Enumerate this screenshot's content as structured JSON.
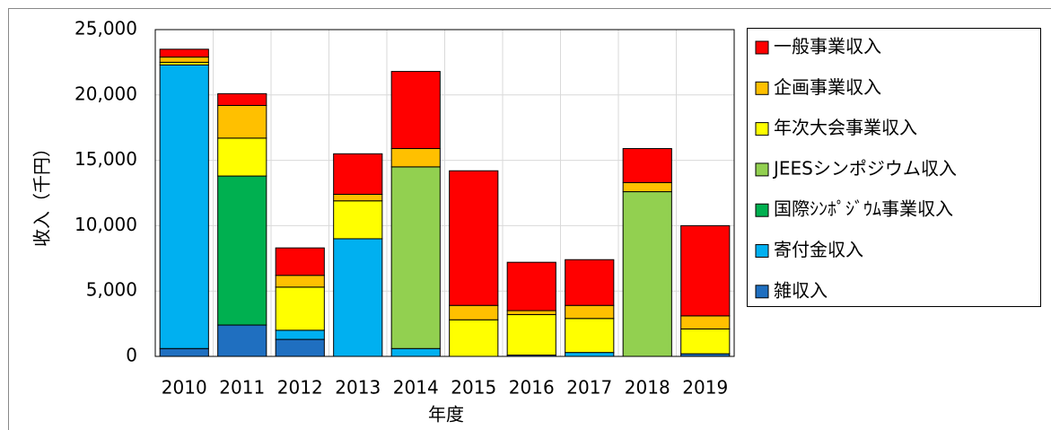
{
  "chart_data": {
    "type": "stacked_bar",
    "x_label": "年度",
    "y_label": "收入（千円）",
    "categories": [
      "2010",
      "2011",
      "2012",
      "2013",
      "2014",
      "2015",
      "2016",
      "2017",
      "2018",
      "2019"
    ],
    "series": [
      {
        "name": "雑収入",
        "color": "#1f6fc0",
        "values": [
          600,
          2400,
          1300,
          0,
          0,
          0,
          100,
          0,
          0,
          200
        ]
      },
      {
        "name": "寄付金収入",
        "color": "#00b0f0",
        "values": [
          21700,
          0,
          700,
          9000,
          600,
          0,
          0,
          300,
          0,
          0
        ]
      },
      {
        "name": "国際ｼﾝﾎﾟｼﾞｳﾑ事業収入",
        "color": "#00b050",
        "values": [
          0,
          11400,
          0,
          0,
          0,
          0,
          0,
          0,
          0,
          0
        ]
      },
      {
        "name": "JEESシンポジウム収入",
        "color": "#92d050",
        "values": [
          0,
          0,
          0,
          0,
          13900,
          0,
          0,
          0,
          12600,
          0
        ]
      },
      {
        "name": "年次大会事業収入",
        "color": "#ffff00",
        "values": [
          200,
          2900,
          3300,
          2900,
          0,
          2800,
          3100,
          2600,
          0,
          1900
        ]
      },
      {
        "name": "企画事業収入",
        "color": "#ffc000",
        "values": [
          400,
          2500,
          900,
          500,
          1400,
          1100,
          300,
          1000,
          700,
          1000
        ]
      },
      {
        "name": "一般事業収入",
        "color": "#ff0000",
        "values": [
          600,
          900,
          2100,
          3100,
          5900,
          10300,
          3700,
          3500,
          2600,
          6900
        ]
      }
    ],
    "ylim": [
      0,
      25000
    ],
    "yticks": [
      0,
      {
        "value": 5000,
        "label": "5,000"
      },
      {
        "value": 10000,
        "label": "10,000"
      },
      {
        "value": 15000,
        "label": "15,000"
      },
      {
        "value": 20000,
        "label": "20,000"
      },
      {
        "value": 25000,
        "label": "25,000"
      }
    ],
    "grid": true,
    "legend": "right"
  }
}
